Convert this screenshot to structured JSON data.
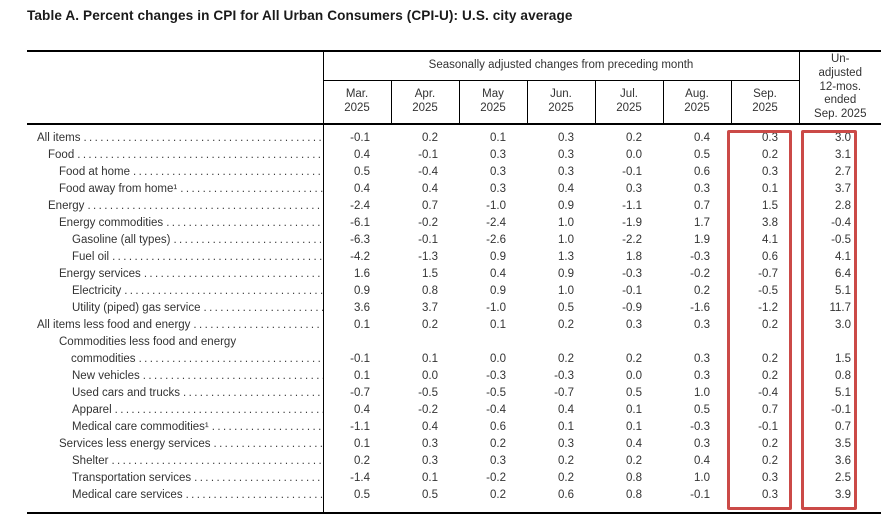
{
  "title": "Table A. Percent changes in CPI for All Urban Consumers (CPI-U): U.S. city average",
  "table": {
    "group_header": "Seasonally adjusted changes from preceding month",
    "month_columns": [
      "Mar.\n2025",
      "Apr.\n2025",
      "May\n2025",
      "Jun.\n2025",
      "Jul.\n2025",
      "Aug.\n2025",
      "Sep.\n2025"
    ],
    "unadjusted_header": "Un-\nadjusted\n12-mos.\nended\nSep. 2025",
    "rows": [
      {
        "label": "All items",
        "level": 0,
        "values": [
          "-0.1",
          "0.2",
          "0.1",
          "0.3",
          "0.2",
          "0.4",
          "0.3"
        ],
        "unadjusted": "3.0"
      },
      {
        "label": "Food",
        "level": 1,
        "values": [
          "0.4",
          "-0.1",
          "0.3",
          "0.3",
          "0.0",
          "0.5",
          "0.2"
        ],
        "unadjusted": "3.1"
      },
      {
        "label": "Food at home",
        "level": 2,
        "values": [
          "0.5",
          "-0.4",
          "0.3",
          "0.3",
          "-0.1",
          "0.6",
          "0.3"
        ],
        "unadjusted": "2.7"
      },
      {
        "label": "Food away from home¹",
        "level": 2,
        "values": [
          "0.4",
          "0.4",
          "0.3",
          "0.4",
          "0.3",
          "0.3",
          "0.1"
        ],
        "unadjusted": "3.7"
      },
      {
        "label": "Energy",
        "level": 1,
        "values": [
          "-2.4",
          "0.7",
          "-1.0",
          "0.9",
          "-1.1",
          "0.7",
          "1.5"
        ],
        "unadjusted": "2.8"
      },
      {
        "label": "Energy commodities",
        "level": 2,
        "values": [
          "-6.1",
          "-0.2",
          "-2.4",
          "1.0",
          "-1.9",
          "1.7",
          "3.8"
        ],
        "unadjusted": "-0.4"
      },
      {
        "label": "Gasoline (all types)",
        "level": 3,
        "values": [
          "-6.3",
          "-0.1",
          "-2.6",
          "1.0",
          "-2.2",
          "1.9",
          "4.1"
        ],
        "unadjusted": "-0.5"
      },
      {
        "label": "Fuel oil",
        "level": 3,
        "values": [
          "-4.2",
          "-1.3",
          "0.9",
          "1.3",
          "1.8",
          "-0.3",
          "0.6"
        ],
        "unadjusted": "4.1"
      },
      {
        "label": "Energy services",
        "level": 2,
        "values": [
          "1.6",
          "1.5",
          "0.4",
          "0.9",
          "-0.3",
          "-0.2",
          "-0.7"
        ],
        "unadjusted": "6.4"
      },
      {
        "label": "Electricity",
        "level": 3,
        "values": [
          "0.9",
          "0.8",
          "0.9",
          "1.0",
          "-0.1",
          "0.2",
          "-0.5"
        ],
        "unadjusted": "5.1"
      },
      {
        "label": "Utility (piped) gas service",
        "level": 3,
        "values": [
          "3.6",
          "3.7",
          "-1.0",
          "0.5",
          "-0.9",
          "-1.6",
          "-1.2"
        ],
        "unadjusted": "11.7"
      },
      {
        "label": "All items less food and energy",
        "level": 0,
        "values": [
          "0.1",
          "0.2",
          "0.1",
          "0.2",
          "0.3",
          "0.3",
          "0.2"
        ],
        "unadjusted": "3.0"
      },
      {
        "label": "Commodities less food and energy",
        "label2": "commodities",
        "level": 2,
        "values": [
          "-0.1",
          "0.1",
          "0.0",
          "0.2",
          "0.2",
          "0.3",
          "0.2"
        ],
        "unadjusted": "1.5"
      },
      {
        "label": "New vehicles",
        "level": 3,
        "values": [
          "0.1",
          "0.0",
          "-0.3",
          "-0.3",
          "0.0",
          "0.3",
          "0.2"
        ],
        "unadjusted": "0.8"
      },
      {
        "label": "Used cars and trucks",
        "level": 3,
        "values": [
          "-0.7",
          "-0.5",
          "-0.5",
          "-0.7",
          "0.5",
          "1.0",
          "-0.4"
        ],
        "unadjusted": "5.1"
      },
      {
        "label": "Apparel",
        "level": 3,
        "values": [
          "0.4",
          "-0.2",
          "-0.4",
          "0.4",
          "0.1",
          "0.5",
          "0.7"
        ],
        "unadjusted": "-0.1"
      },
      {
        "label": "Medical care commodities¹",
        "level": 3,
        "values": [
          "-1.1",
          "0.4",
          "0.6",
          "0.1",
          "0.1",
          "-0.3",
          "-0.1"
        ],
        "unadjusted": "0.7"
      },
      {
        "label": "Services less energy services",
        "level": 2,
        "values": [
          "0.1",
          "0.3",
          "0.2",
          "0.3",
          "0.4",
          "0.3",
          "0.2"
        ],
        "unadjusted": "3.5"
      },
      {
        "label": "Shelter",
        "level": 3,
        "values": [
          "0.2",
          "0.3",
          "0.3",
          "0.2",
          "0.2",
          "0.4",
          "0.2"
        ],
        "unadjusted": "3.6"
      },
      {
        "label": "Transportation services",
        "level": 3,
        "values": [
          "-1.4",
          "0.1",
          "-0.2",
          "0.2",
          "0.8",
          "1.0",
          "0.3"
        ],
        "unadjusted": "2.5"
      },
      {
        "label": "Medical care services",
        "level": 3,
        "values": [
          "0.5",
          "0.5",
          "0.2",
          "0.6",
          "0.8",
          "-0.1",
          "0.3"
        ],
        "unadjusted": "3.9"
      }
    ]
  },
  "highlights": {
    "highlighted_columns": [
      "Sep. 2025",
      "Un-adjusted 12-mos. ended Sep. 2025"
    ],
    "color": "#cb4a47"
  }
}
